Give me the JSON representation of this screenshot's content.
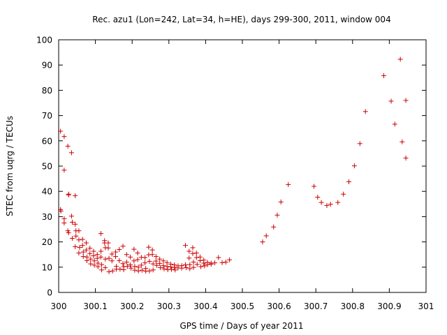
{
  "chart_data": {
    "type": "scatter",
    "title": "Rec. azu1 (Lon=242, Lat=34, h=HE), days 299-300, 2011, window 004",
    "xlabel": "GPS time / Days of year 2011",
    "ylabel": "STEC from uqrg / TECUs",
    "xlim": [
      300,
      301
    ],
    "ylim": [
      0,
      100
    ],
    "xticks": [
      300,
      300.1,
      300.2,
      300.3,
      300.4,
      300.5,
      300.6,
      300.7,
      300.8,
      300.9,
      301
    ],
    "xtick_labels": [
      "300",
      "300.1",
      "300.2",
      "300.3",
      "300.4",
      "300.5",
      "300.6",
      "300.7",
      "300.8",
      "300.9",
      "301"
    ],
    "yticks": [
      0,
      10,
      20,
      30,
      40,
      50,
      60,
      70,
      80,
      90,
      100
    ],
    "ytick_labels": [
      "0",
      "10",
      "20",
      "30",
      "40",
      "50",
      "60",
      "70",
      "80",
      "90",
      "100"
    ],
    "grid": false,
    "marker": "+",
    "marker_color": "#cc0000",
    "points": [
      [
        300.005,
        63.8
      ],
      [
        300.005,
        32.8
      ],
      [
        300.006,
        32.2
      ],
      [
        300.015,
        61.7
      ],
      [
        300.015,
        48.4
      ],
      [
        300.015,
        29.2
      ],
      [
        300.015,
        27.5
      ],
      [
        300.025,
        57.9
      ],
      [
        300.027,
        38.9
      ],
      [
        300.027,
        38.6
      ],
      [
        300.025,
        24.4
      ],
      [
        300.027,
        23.6
      ],
      [
        300.035,
        55.3
      ],
      [
        300.035,
        30.2
      ],
      [
        300.037,
        27.8
      ],
      [
        300.037,
        21.4
      ],
      [
        300.045,
        38.3
      ],
      [
        300.045,
        27.0
      ],
      [
        300.047,
        24.4
      ],
      [
        300.047,
        22.3
      ],
      [
        300.045,
        18.1
      ],
      [
        300.055,
        24.4
      ],
      [
        300.055,
        20.8
      ],
      [
        300.057,
        17.8
      ],
      [
        300.055,
        15.6
      ],
      [
        300.065,
        21.0
      ],
      [
        300.065,
        18.6
      ],
      [
        300.067,
        16.0
      ],
      [
        300.067,
        14.2
      ],
      [
        300.075,
        19.6
      ],
      [
        300.075,
        16.8
      ],
      [
        300.077,
        14.0
      ],
      [
        300.077,
        12.6
      ],
      [
        300.085,
        17.5
      ],
      [
        300.085,
        15.4
      ],
      [
        300.087,
        13.2
      ],
      [
        300.087,
        11.3
      ],
      [
        300.095,
        16.3
      ],
      [
        300.095,
        14.5
      ],
      [
        300.097,
        12.5
      ],
      [
        300.097,
        10.8
      ],
      [
        300.105,
        15.0
      ],
      [
        300.105,
        13.5
      ],
      [
        300.107,
        11.6
      ],
      [
        300.107,
        10.2
      ],
      [
        300.115,
        23.3
      ],
      [
        300.115,
        16.3
      ],
      [
        300.115,
        14.0
      ],
      [
        300.117,
        11.0
      ],
      [
        300.117,
        8.9
      ],
      [
        300.125,
        20.5
      ],
      [
        300.125,
        19.6
      ],
      [
        300.127,
        17.7
      ],
      [
        300.127,
        13.2
      ],
      [
        300.127,
        9.8
      ],
      [
        300.135,
        19.6
      ],
      [
        300.135,
        17.6
      ],
      [
        300.137,
        13.5
      ],
      [
        300.137,
        8.2
      ],
      [
        300.145,
        15.2
      ],
      [
        300.145,
        12.5
      ],
      [
        300.147,
        8.5
      ],
      [
        300.155,
        16.0
      ],
      [
        300.155,
        14.2
      ],
      [
        300.157,
        10.3
      ],
      [
        300.157,
        9.2
      ],
      [
        300.165,
        17.0
      ],
      [
        300.165,
        12.6
      ],
      [
        300.167,
        9.2
      ],
      [
        300.175,
        18.3
      ],
      [
        300.175,
        11.4
      ],
      [
        300.177,
        10.2
      ],
      [
        300.177,
        9.0
      ],
      [
        300.185,
        15.0
      ],
      [
        300.185,
        12.0
      ],
      [
        300.187,
        10.3
      ],
      [
        300.195,
        14.0
      ],
      [
        300.195,
        10.9
      ],
      [
        300.197,
        9.6
      ],
      [
        300.205,
        17.1
      ],
      [
        300.205,
        12.5
      ],
      [
        300.207,
        10.3
      ],
      [
        300.207,
        8.8
      ],
      [
        300.215,
        15.6
      ],
      [
        300.215,
        13.0
      ],
      [
        300.217,
        10.0
      ],
      [
        300.217,
        8.5
      ],
      [
        300.225,
        13.9
      ],
      [
        300.225,
        10.8
      ],
      [
        300.227,
        8.8
      ],
      [
        300.235,
        13.8
      ],
      [
        300.235,
        11.7
      ],
      [
        300.237,
        9.5
      ],
      [
        300.237,
        8.4
      ],
      [
        300.245,
        17.9
      ],
      [
        300.245,
        14.9
      ],
      [
        300.247,
        12.3
      ],
      [
        300.247,
        8.5
      ],
      [
        300.255,
        16.8
      ],
      [
        300.255,
        15.0
      ],
      [
        300.257,
        11.3
      ],
      [
        300.257,
        8.9
      ],
      [
        300.265,
        14.2
      ],
      [
        300.265,
        12.4
      ],
      [
        300.267,
        10.7
      ],
      [
        300.275,
        13.2
      ],
      [
        300.275,
        11.5
      ],
      [
        300.277,
        9.8
      ],
      [
        300.285,
        12.5
      ],
      [
        300.285,
        10.6
      ],
      [
        300.287,
        9.3
      ],
      [
        300.295,
        11.8
      ],
      [
        300.295,
        10.3
      ],
      [
        300.297,
        9.0
      ],
      [
        300.305,
        11.2
      ],
      [
        300.305,
        10.1
      ],
      [
        300.307,
        9.1
      ],
      [
        300.315,
        10.9
      ],
      [
        300.315,
        9.9
      ],
      [
        300.317,
        8.9
      ],
      [
        300.325,
        10.5
      ],
      [
        300.325,
        9.7
      ],
      [
        300.335,
        10.6
      ],
      [
        300.335,
        9.6
      ],
      [
        300.345,
        18.6
      ],
      [
        300.345,
        11.0
      ],
      [
        300.347,
        9.8
      ],
      [
        300.355,
        16.3
      ],
      [
        300.355,
        13.6
      ],
      [
        300.357,
        11.0
      ],
      [
        300.357,
        9.4
      ],
      [
        300.365,
        17.7
      ],
      [
        300.365,
        15.4
      ],
      [
        300.367,
        12.0
      ],
      [
        300.367,
        9.9
      ],
      [
        300.375,
        15.6
      ],
      [
        300.375,
        13.8
      ],
      [
        300.377,
        11.1
      ],
      [
        300.385,
        14.0
      ],
      [
        300.385,
        12.6
      ],
      [
        300.387,
        10.2
      ],
      [
        300.395,
        12.8
      ],
      [
        300.395,
        11.6
      ],
      [
        300.397,
        10.5
      ],
      [
        300.405,
        11.9
      ],
      [
        300.405,
        11.0
      ],
      [
        300.415,
        11.6
      ],
      [
        300.415,
        11.2
      ],
      [
        300.425,
        11.7
      ],
      [
        300.435,
        13.8
      ],
      [
        300.445,
        11.8
      ],
      [
        300.455,
        12.0
      ],
      [
        300.465,
        12.9
      ],
      [
        300.555,
        20.0
      ],
      [
        300.565,
        22.4
      ],
      [
        300.585,
        25.9
      ],
      [
        300.595,
        30.6
      ],
      [
        300.605,
        35.8
      ],
      [
        300.625,
        42.7
      ],
      [
        300.695,
        42.0
      ],
      [
        300.705,
        37.7
      ],
      [
        300.715,
        35.6
      ],
      [
        300.73,
        34.4
      ],
      [
        300.74,
        34.9
      ],
      [
        300.76,
        35.6
      ],
      [
        300.775,
        38.9
      ],
      [
        300.79,
        43.8
      ],
      [
        300.805,
        50.1
      ],
      [
        300.82,
        58.9
      ],
      [
        300.835,
        71.6
      ],
      [
        300.885,
        85.8
      ],
      [
        300.905,
        75.7
      ],
      [
        300.915,
        66.6
      ],
      [
        300.93,
        92.3
      ],
      [
        300.935,
        59.6
      ],
      [
        300.945,
        76.0
      ],
      [
        300.945,
        53.2
      ]
    ]
  }
}
